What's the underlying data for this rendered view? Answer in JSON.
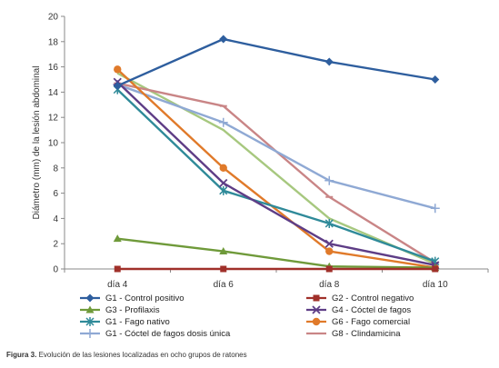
{
  "chart_data": {
    "type": "line",
    "categories": [
      "día 4",
      "día 6",
      "día 8",
      "día 10"
    ],
    "ylabel": "Diámetro (mm) de la lesión abdominal",
    "xlabel": "",
    "ylim": [
      0,
      20
    ],
    "yticks": [
      0,
      2,
      4,
      6,
      8,
      10,
      12,
      14,
      16,
      18,
      20
    ],
    "grid": false,
    "legend_position": "bottom",
    "series": [
      {
        "name": "G1 - Control positivo",
        "color": "#2e5e9e",
        "marker": "diamond",
        "values": [
          14.5,
          18.2,
          16.4,
          15.0
        ]
      },
      {
        "name": "G2 - Control negativo",
        "color": "#a0302a",
        "marker": "square",
        "values": [
          0,
          0,
          0,
          0
        ]
      },
      {
        "name": "G3 - Profilaxis",
        "color": "#6f9a3a",
        "marker": "triangle",
        "values": [
          2.4,
          1.4,
          0.2,
          0.1
        ]
      },
      {
        "name": "G4 - Cóctel de fagos",
        "color": "#5e3d86",
        "marker": "x",
        "values": [
          14.8,
          6.8,
          2.0,
          0.3
        ]
      },
      {
        "name": "G1 - Fago nativo",
        "color": "#2f8a99",
        "marker": "star",
        "values": [
          14.2,
          6.2,
          3.6,
          0.6
        ]
      },
      {
        "name": "G6 - Fago comercial",
        "color": "#e07a2a",
        "marker": "circle",
        "values": [
          15.8,
          8.0,
          1.4,
          0.1
        ]
      },
      {
        "name": "G1 - Cóctel de fagos dosis única",
        "color": "#8fa9d4",
        "marker": "plus",
        "values": [
          14.6,
          11.6,
          7.0,
          4.8
        ]
      },
      {
        "name": "G8 - Clindamicina",
        "color": "#c98586",
        "marker": "dash",
        "values": [
          14.7,
          12.9,
          5.7,
          0.5
        ]
      },
      {
        "name": "",
        "color": "#a7c87f",
        "marker": "none",
        "values": [
          15.5,
          11.0,
          4.0,
          0.4
        ]
      }
    ]
  },
  "caption": {
    "label": "Figura 3.",
    "text": " Evolución de las lesiones localizadas en ocho grupos de ratones"
  }
}
